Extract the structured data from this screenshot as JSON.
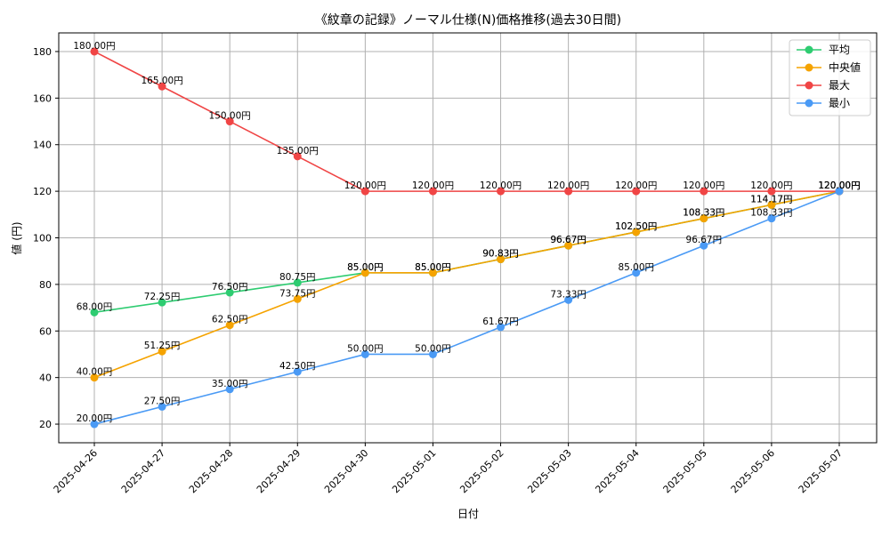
{
  "chart_data": {
    "type": "line",
    "title": "《紋章の記録》ノーマル仕様(N)価格推移(過去30日間)",
    "xlabel": "日付",
    "ylabel": "値 (円)",
    "ylim": [
      12,
      188
    ],
    "yticks": [
      20,
      40,
      60,
      80,
      100,
      120,
      140,
      160,
      180
    ],
    "grid": true,
    "legend_position": "top-right",
    "label_suffix": "円",
    "categories": [
      "2025-04-26",
      "2025-04-27",
      "2025-04-28",
      "2025-04-29",
      "2025-04-30",
      "2025-05-01",
      "2025-05-02",
      "2025-05-03",
      "2025-05-04",
      "2025-05-05",
      "2025-05-06",
      "2025-05-07"
    ],
    "series": [
      {
        "name": "平均",
        "color": "#2ecc71",
        "values": [
          68.0,
          72.25,
          76.5,
          80.75,
          85.0,
          85.0,
          90.83,
          96.67,
          102.5,
          108.33,
          114.17,
          120.0
        ]
      },
      {
        "name": "中央値",
        "color": "#f5a300",
        "values": [
          40.0,
          51.25,
          62.5,
          73.75,
          85.0,
          85.0,
          90.83,
          96.67,
          102.5,
          108.33,
          114.17,
          120.0
        ]
      },
      {
        "name": "最大",
        "color": "#f04545",
        "values": [
          180.0,
          165.0,
          150.0,
          135.0,
          120.0,
          120.0,
          120.0,
          120.0,
          120.0,
          120.0,
          120.0,
          120.0
        ]
      },
      {
        "name": "最小",
        "color": "#4a9af5",
        "values": [
          20.0,
          27.5,
          35.0,
          42.5,
          50.0,
          50.0,
          61.67,
          73.33,
          85.0,
          96.67,
          108.33,
          120.0
        ]
      }
    ]
  }
}
